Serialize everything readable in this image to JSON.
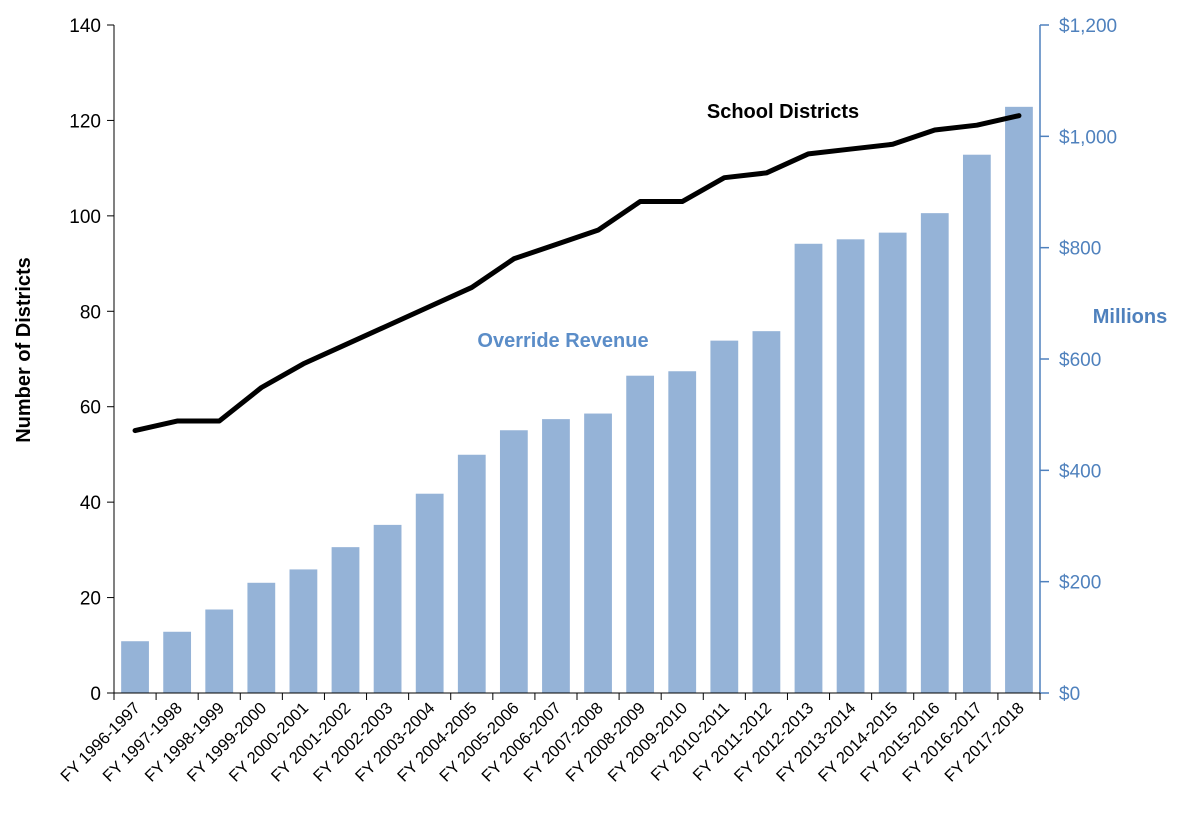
{
  "chart_data": {
    "type": "bar",
    "categories": [
      "FY 1996-1997",
      "FY 1997-1998",
      "FY 1998-1999",
      "FY 1999-2000",
      "FY 2000-2001",
      "FY 2001-2002",
      "FY 2002-2003",
      "FY 2003-2004",
      "FY 2004-2005",
      "FY 2005-2006",
      "FY 2006-2007",
      "FY 2007-2008",
      "FY 2008-2009",
      "FY 2009-2010",
      "FY 2010-2011",
      "FY 2011-2012",
      "FY 2012-2013",
      "FY 2013-2014",
      "FY 2014-2015",
      "FY 2015-2016",
      "FY 2016-2017",
      "FY 2017-2018"
    ],
    "series": [
      {
        "name": "Override Revenue",
        "type": "bar",
        "axis": "right",
        "color": "#95B3D7",
        "values": [
          93,
          110,
          150,
          198,
          222,
          262,
          302,
          358,
          428,
          472,
          492,
          502,
          570,
          578,
          633,
          650,
          807,
          815,
          827,
          862,
          967,
          1053
        ]
      },
      {
        "name": "School Districts",
        "type": "line",
        "axis": "left",
        "color": "#000000",
        "values": [
          55,
          57,
          57,
          64,
          69,
          73,
          77,
          81,
          85,
          91,
          94,
          97,
          103,
          103,
          108,
          109,
          113,
          114,
          115,
          118,
          119,
          121
        ]
      }
    ],
    "ylabel": "Number of Districts",
    "y_left": {
      "min": 0,
      "max": 140,
      "ticks": [
        0,
        20,
        40,
        60,
        80,
        100,
        120,
        140
      ]
    },
    "y_right": {
      "label": "Millions",
      "min": 0,
      "max": 1200,
      "ticks": [
        0,
        200,
        400,
        600,
        800,
        1000,
        1200
      ],
      "tick_labels": [
        "$0",
        "$200",
        "$400",
        "$600",
        "$800",
        "$1,000",
        "$1,200"
      ],
      "color": "#4F81BD"
    },
    "bar_label_color": "#5B8DC8",
    "grid": false,
    "legend": "none"
  }
}
